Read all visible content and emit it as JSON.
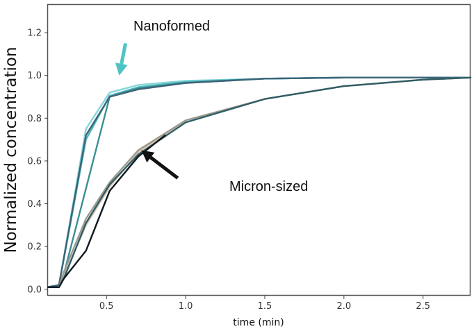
{
  "chart_data": {
    "type": "line",
    "title": "",
    "xlabel": "time (min)",
    "ylabel": "Normalized concentration",
    "xlim": [
      0.13,
      2.8
    ],
    "ylim": [
      -0.03,
      1.33
    ],
    "x_ticks": [
      0.5,
      1.0,
      1.5,
      2.0,
      2.5
    ],
    "x_tick_labels": [
      "0.5",
      "1.0",
      "1.5",
      "2.0",
      "2.5"
    ],
    "y_ticks": [
      0.0,
      0.2,
      0.4,
      0.6,
      0.8,
      1.0,
      1.2
    ],
    "y_tick_labels": [
      "0.0",
      "0.2",
      "0.4",
      "0.6",
      "0.8",
      "1.0",
      "1.2"
    ],
    "grid": false,
    "legend": "none",
    "series": [
      {
        "color": "#87d6d8",
        "x": [
          0.13,
          0.2,
          0.37,
          0.52,
          0.7,
          1.0,
          1.5,
          2.0,
          2.5,
          2.8
        ],
        "y": [
          0.01,
          0.02,
          0.75,
          0.92,
          0.955,
          0.975,
          0.985,
          0.99,
          0.99,
          0.99
        ]
      },
      {
        "color": "#4fb7be",
        "x": [
          0.13,
          0.2,
          0.37,
          0.52,
          0.7,
          1.0,
          1.5,
          2.0,
          2.5,
          2.8
        ],
        "y": [
          0.01,
          0.02,
          0.7,
          0.905,
          0.945,
          0.97,
          0.985,
          0.99,
          0.99,
          0.99
        ]
      },
      {
        "color": "#3a8f93",
        "x": [
          0.13,
          0.2,
          0.23,
          0.52,
          0.7,
          1.0,
          1.5,
          2.0,
          2.5,
          2.8
        ],
        "y": [
          0.01,
          0.01,
          0.07,
          0.9,
          0.94,
          0.965,
          0.985,
          0.99,
          0.99,
          0.99
        ]
      },
      {
        "color": "#3d6478",
        "x": [
          0.13,
          0.2,
          0.37,
          0.52,
          0.7,
          1.0,
          1.5,
          2.0,
          2.5,
          2.8
        ],
        "y": [
          0.01,
          0.02,
          0.72,
          0.9,
          0.935,
          0.965,
          0.985,
          0.99,
          0.99,
          0.99
        ]
      },
      {
        "color": "#d8c0a8",
        "x": [
          0.13,
          0.2,
          0.23,
          0.37,
          0.52,
          0.7,
          1.0,
          1.5,
          2.0,
          2.5,
          2.8
        ],
        "y": [
          0.01,
          0.01,
          0.06,
          0.3,
          0.48,
          0.64,
          0.79,
          0.89,
          0.95,
          0.98,
          0.99
        ]
      },
      {
        "color": "#9a9a90",
        "x": [
          0.13,
          0.2,
          0.23,
          0.37,
          0.52,
          0.7,
          1.0,
          1.5,
          2.0,
          2.5,
          2.8
        ],
        "y": [
          0.01,
          0.01,
          0.08,
          0.33,
          0.5,
          0.65,
          0.79,
          0.89,
          0.95,
          0.98,
          0.99
        ]
      },
      {
        "color": "#2f5d66",
        "x": [
          0.13,
          0.2,
          0.23,
          0.37,
          0.52,
          0.7,
          1.0,
          1.5,
          2.0,
          2.5,
          2.8
        ],
        "y": [
          0.01,
          0.01,
          0.05,
          0.31,
          0.49,
          0.63,
          0.78,
          0.89,
          0.95,
          0.98,
          0.99
        ]
      },
      {
        "color": "#101820",
        "x": [
          0.13,
          0.2,
          0.23,
          0.37,
          0.52,
          0.7,
          0.87
        ],
        "y": [
          0.01,
          0.01,
          0.05,
          0.18,
          0.46,
          0.62,
          0.72
        ]
      }
    ],
    "annotations": [
      {
        "text": "Nanoformed",
        "color": "#4fc3c3",
        "from": [
          0.62,
          1.15
        ],
        "to": [
          0.58,
          1.0
        ]
      },
      {
        "text": "Micron-sized",
        "color": "#111111",
        "from": [
          0.95,
          0.52
        ],
        "to": [
          0.72,
          0.65
        ]
      }
    ]
  }
}
